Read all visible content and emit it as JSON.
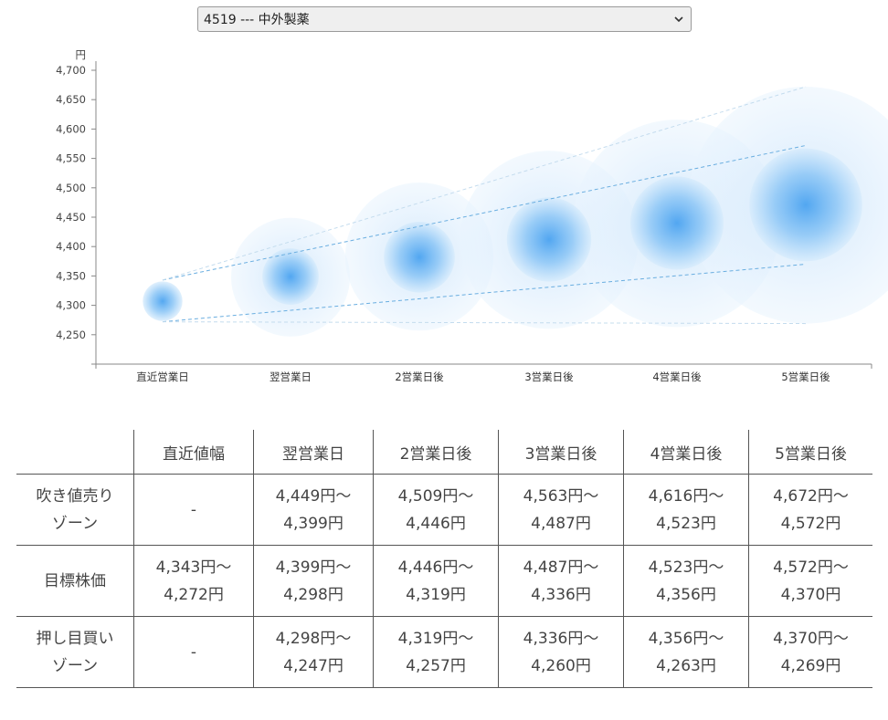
{
  "selector": {
    "label": "4519 --- 中外製薬"
  },
  "chart_data": {
    "type": "scatter",
    "unit_label": "円",
    "categories": [
      "直近営業日",
      "翌営業日",
      "2営業日後",
      "3営業日後",
      "4営業日後",
      "5営業日後"
    ],
    "ylim": [
      4200,
      4700
    ],
    "yticks": [
      4250,
      4300,
      4350,
      4400,
      4450,
      4500,
      4550,
      4600,
      4650,
      4700
    ],
    "ytick_labels": [
      "4,250",
      "4,300",
      "4,350",
      "4,400",
      "4,450",
      "4,500",
      "4,550",
      "4,600",
      "4,650",
      "4,700"
    ],
    "target_center": [
      4307,
      4349,
      4382,
      4412,
      4440,
      4471
    ],
    "target_upper": [
      4343,
      4399,
      4446,
      4487,
      4523,
      4572
    ],
    "target_lower": [
      4272,
      4298,
      4319,
      4336,
      4356,
      4370
    ],
    "outer_upper": [
      null,
      4449,
      4509,
      4563,
      4616,
      4672
    ],
    "outer_lower": [
      null,
      4247,
      4257,
      4260,
      4263,
      4269
    ],
    "colors": {
      "bubble": "#4ba3f0",
      "line": "#6aaee0",
      "axis": "#888888"
    }
  },
  "table": {
    "headers": [
      "",
      "直近値幅",
      "翌営業日",
      "2営業日後",
      "3営業日後",
      "4営業日後",
      "5営業日後"
    ],
    "rows": [
      {
        "label": [
          "吹き値売り",
          "ゾーン"
        ],
        "cells": [
          [
            "-"
          ],
          [
            "4,449円～",
            "4,399円"
          ],
          [
            "4,509円～",
            "4,446円"
          ],
          [
            "4,563円～",
            "4,487円"
          ],
          [
            "4,616円～",
            "4,523円"
          ],
          [
            "4,672円～",
            "4,572円"
          ]
        ]
      },
      {
        "label": [
          "目標株価"
        ],
        "cells": [
          [
            "4,343円～",
            "4,272円"
          ],
          [
            "4,399円～",
            "4,298円"
          ],
          [
            "4,446円～",
            "4,319円"
          ],
          [
            "4,487円～",
            "4,336円"
          ],
          [
            "4,523円～",
            "4,356円"
          ],
          [
            "4,572円～",
            "4,370円"
          ]
        ]
      },
      {
        "label": [
          "押し目買い",
          "ゾーン"
        ],
        "cells": [
          [
            "-"
          ],
          [
            "4,298円～",
            "4,247円"
          ],
          [
            "4,319円～",
            "4,257円"
          ],
          [
            "4,336円～",
            "4,260円"
          ],
          [
            "4,356円～",
            "4,263円"
          ],
          [
            "4,370円～",
            "4,269円"
          ]
        ]
      }
    ]
  }
}
